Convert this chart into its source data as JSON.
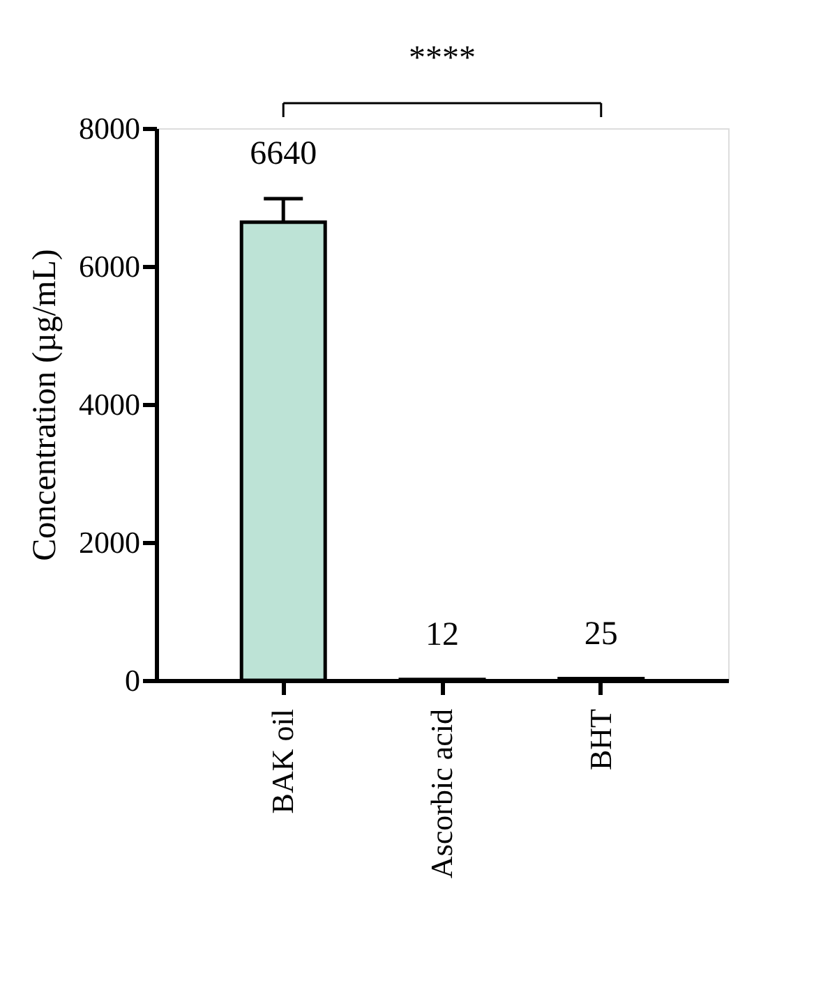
{
  "chart_data": {
    "type": "bar",
    "categories": [
      "BAK oil",
      "Ascorbic acid",
      "BHT"
    ],
    "values": [
      6640,
      12,
      25
    ],
    "errors": [
      340,
      null,
      null
    ],
    "color": "#bde3d6",
    "ylabel": "Concentration (µg/mL)",
    "ylim": [
      0,
      8000
    ],
    "yticks": [
      0,
      2000,
      4000,
      6000,
      8000
    ],
    "data_labels": true,
    "annotations": [
      "****"
    ],
    "grid": false
  }
}
